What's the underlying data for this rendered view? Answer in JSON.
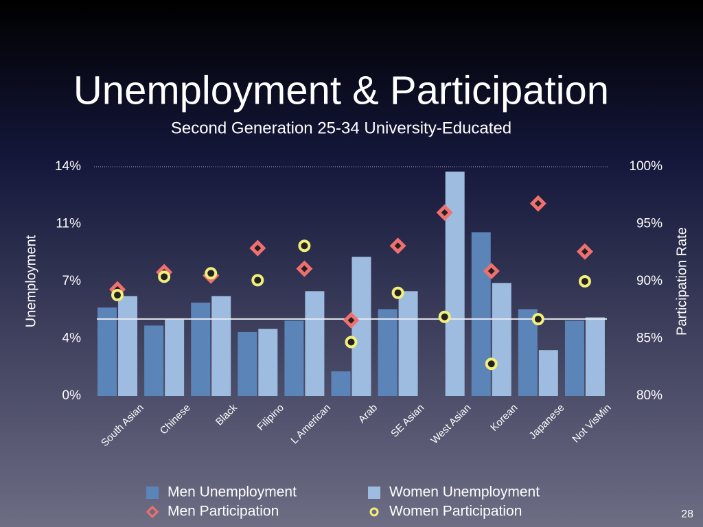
{
  "title": "Unemployment & Participation",
  "subtitle": "Second Generation 25-34 University-Educated",
  "page_number": "28",
  "chart_data": {
    "type": "bar",
    "categories": [
      "South Asian",
      "Chinese",
      "Black",
      "Filipino",
      "L American",
      "Arab",
      "SE Asian",
      "West Asian",
      "Korean",
      "Japanese",
      "Not VisMin"
    ],
    "series": [
      {
        "name": "Men Unemployment",
        "color": "#5b84b8",
        "marker": "bar",
        "axis": "y",
        "values": [
          5.4,
          4.3,
          5.7,
          3.9,
          4.6,
          1.5,
          5.3,
          null,
          10.0,
          5.3,
          4.6
        ]
      },
      {
        "name": "Women Unemployment",
        "color": "#9dbce0",
        "marker": "bar",
        "axis": "y",
        "values": [
          6.1,
          4.7,
          6.1,
          4.1,
          6.4,
          8.5,
          6.4,
          13.7,
          6.9,
          2.8,
          4.8
        ]
      },
      {
        "name": "Men Participation",
        "color": "#f07070",
        "marker": "diamond",
        "axis": "y2",
        "values": [
          89.3,
          90.8,
          90.5,
          92.9,
          91.1,
          86.6,
          93.1,
          96.0,
          90.9,
          96.8,
          92.6
        ]
      },
      {
        "name": "Women Participation",
        "color": "#f3ef7a",
        "marker": "circle",
        "axis": "y2",
        "values": [
          88.8,
          90.4,
          90.7,
          90.1,
          93.1,
          84.7,
          89.0,
          86.9,
          82.8,
          86.7,
          90.0
        ]
      }
    ],
    "ylabel": "Unemployment",
    "y2label": "Participation  Rate",
    "ylim": [
      0,
      14
    ],
    "yticks": [
      {
        "value": 0,
        "label": "0%"
      },
      {
        "value": 3.5,
        "label": "4%"
      },
      {
        "value": 7,
        "label": "7%"
      },
      {
        "value": 10.5,
        "label": "11%"
      },
      {
        "value": 14,
        "label": "14%"
      }
    ],
    "y2lim": [
      80,
      100
    ],
    "y2ticks": [
      {
        "value": 80,
        "label": "80%"
      },
      {
        "value": 85,
        "label": "85%"
      },
      {
        "value": 90,
        "label": "90%"
      },
      {
        "value": 95,
        "label": "95%"
      },
      {
        "value": 100,
        "label": "100%"
      }
    ],
    "reference_line": 4.7
  }
}
